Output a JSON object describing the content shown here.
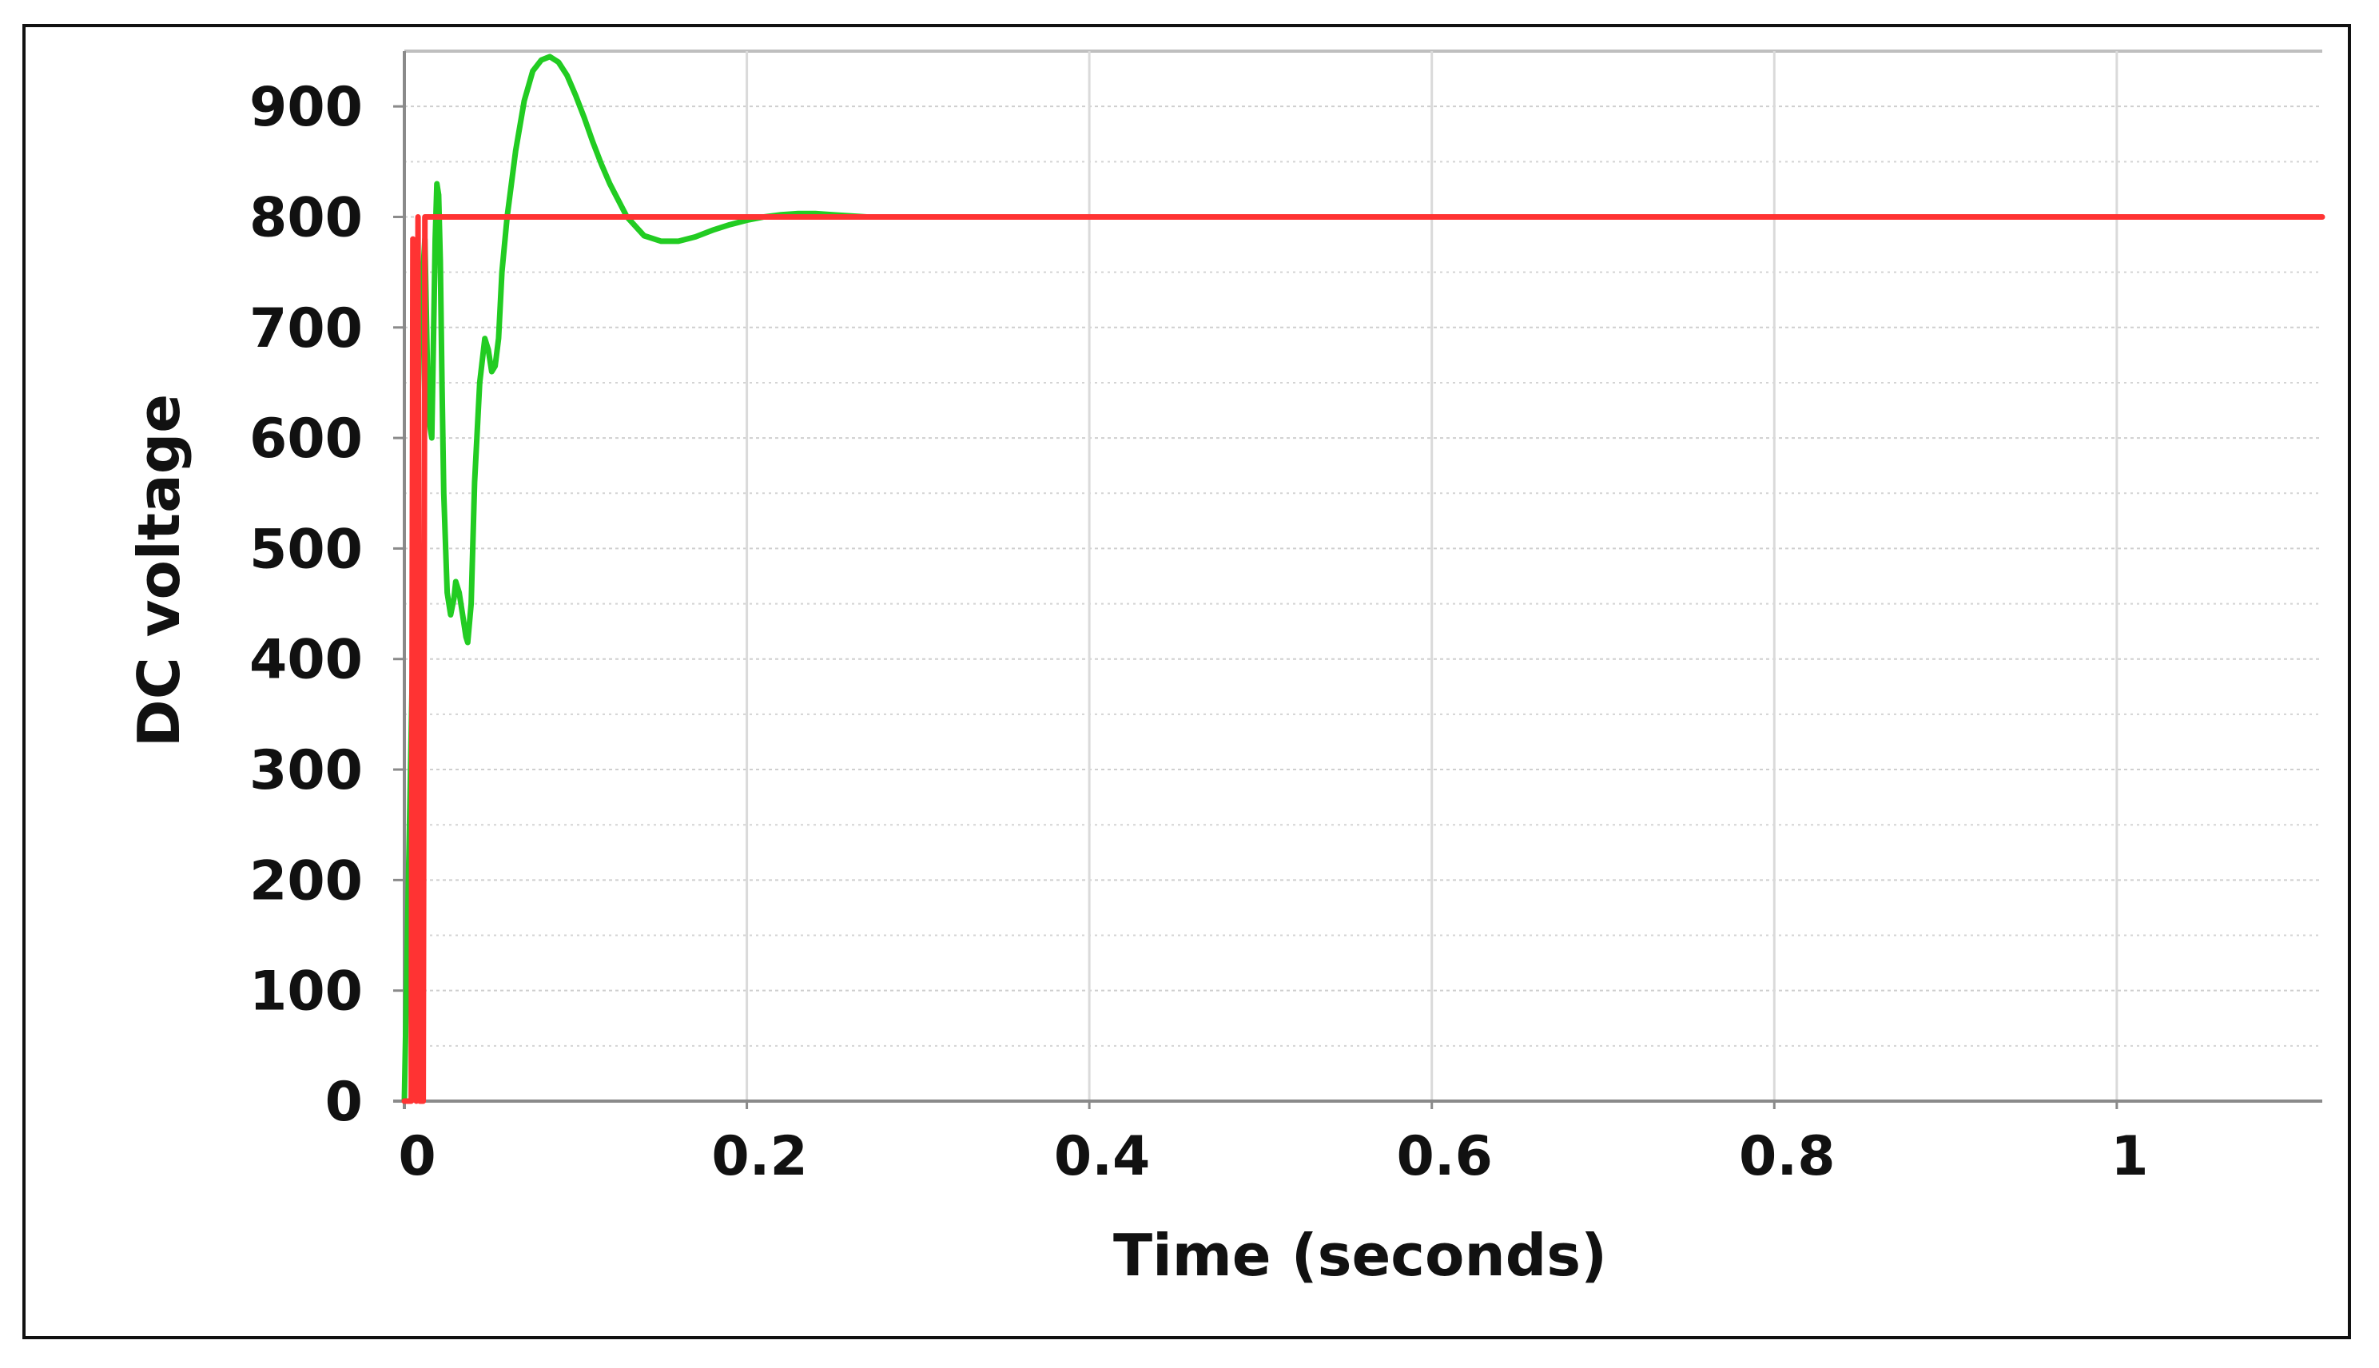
{
  "chart_data": {
    "type": "line",
    "title": "",
    "xlabel": "Time (seconds)",
    "ylabel": "DC voltage",
    "xlim": [
      0,
      1.12
    ],
    "ylim": [
      0,
      950
    ],
    "x_ticks": [
      0,
      0.2,
      0.4,
      0.6,
      0.8,
      1
    ],
    "x_tick_labels": [
      "0",
      "0.2",
      "0.4",
      "0.6",
      "0.8",
      "1"
    ],
    "y_ticks": [
      0,
      100,
      200,
      300,
      400,
      500,
      600,
      700,
      800,
      900
    ],
    "y_tick_labels": [
      "0",
      "100",
      "200",
      "300",
      "400",
      "500",
      "600",
      "700",
      "800",
      "900"
    ],
    "grid": true,
    "legend": "none",
    "series": [
      {
        "color": "#22cc22",
        "x": [
          0.0,
          0.003,
          0.006,
          0.009,
          0.012,
          0.014,
          0.016,
          0.018,
          0.019,
          0.02,
          0.021,
          0.022,
          0.023,
          0.025,
          0.027,
          0.029,
          0.03,
          0.032,
          0.034,
          0.036,
          0.037,
          0.039,
          0.041,
          0.044,
          0.047,
          0.049,
          0.051,
          0.053,
          0.055,
          0.057,
          0.06,
          0.065,
          0.07,
          0.075,
          0.08,
          0.085,
          0.09,
          0.095,
          0.1,
          0.105,
          0.11,
          0.115,
          0.12,
          0.13,
          0.14,
          0.15,
          0.16,
          0.17,
          0.18,
          0.19,
          0.2,
          0.21,
          0.22,
          0.23,
          0.24,
          0.25,
          0.26,
          0.27,
          0.28
        ],
        "y": [
          0,
          250,
          500,
          700,
          780,
          620,
          600,
          780,
          830,
          820,
          760,
          650,
          550,
          460,
          440,
          455,
          470,
          460,
          440,
          420,
          415,
          450,
          560,
          650,
          690,
          680,
          660,
          665,
          690,
          750,
          800,
          860,
          905,
          932,
          942,
          945,
          940,
          928,
          910,
          890,
          868,
          848,
          830,
          800,
          783,
          778,
          778,
          782,
          788,
          793,
          797,
          800,
          802,
          803,
          803,
          802,
          801,
          800,
          800
        ]
      },
      {
        "color": "#ff3333",
        "x": [
          0.0,
          0.004,
          0.005,
          0.007,
          0.008,
          0.009,
          0.01,
          0.011,
          0.012,
          0.013,
          0.015,
          1.12
        ],
        "y": [
          0,
          0,
          780,
          0,
          800,
          0,
          0,
          0,
          800,
          800,
          800,
          800
        ]
      }
    ]
  }
}
